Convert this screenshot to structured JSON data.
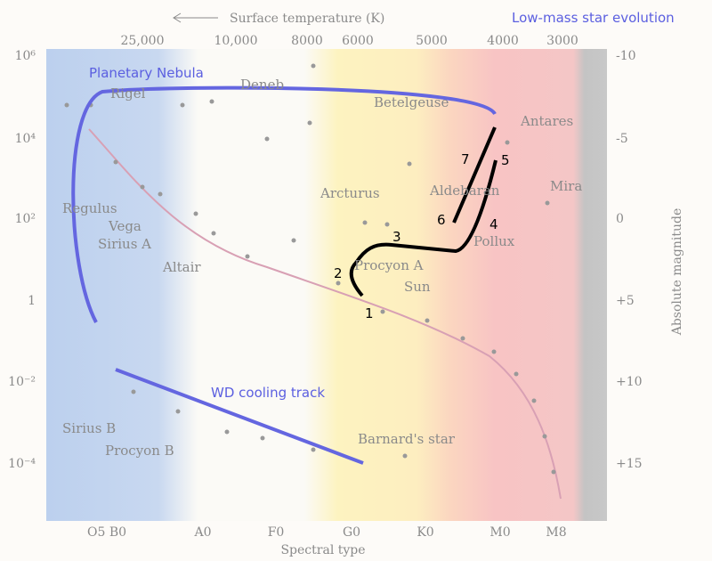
{
  "title": "Low-mass star evolution",
  "top_axis": {
    "label": "Surface temperature (K)",
    "ticks": [
      "25,000",
      "10,000",
      "8000",
      "6000",
      "5000",
      "4000",
      "3000"
    ]
  },
  "left_axis": {
    "ticks": [
      "10⁶",
      "10⁴",
      "10²",
      "1",
      "10⁻²",
      "10⁻⁴"
    ]
  },
  "right_axis": {
    "label": "Absolute magnitude",
    "ticks": [
      "-10",
      "-5",
      "0",
      "+5",
      "+10",
      "+15"
    ]
  },
  "bottom_axis": {
    "label": "Spectral type",
    "ticks": [
      "O5 B0",
      "A0",
      "F0",
      "G0",
      "K0",
      "M0",
      "M8"
    ]
  },
  "stars": [
    "Rigel",
    "Deneb",
    "Betelgeuse",
    "Antares",
    "Mira",
    "Aldebaran",
    "Arcturus",
    "Pollux",
    "Procyon A",
    "Sun",
    "Regulus",
    "Vega",
    "Sirius A",
    "Altair",
    "Sirius B",
    "Procyon B",
    "Barnard's star"
  ],
  "tracks": {
    "planetary_nebula": "Planetary Nebula",
    "wd_cooling": "WD cooling track"
  },
  "stages": [
    "1",
    "2",
    "3",
    "4",
    "5",
    "6",
    "7"
  ]
}
